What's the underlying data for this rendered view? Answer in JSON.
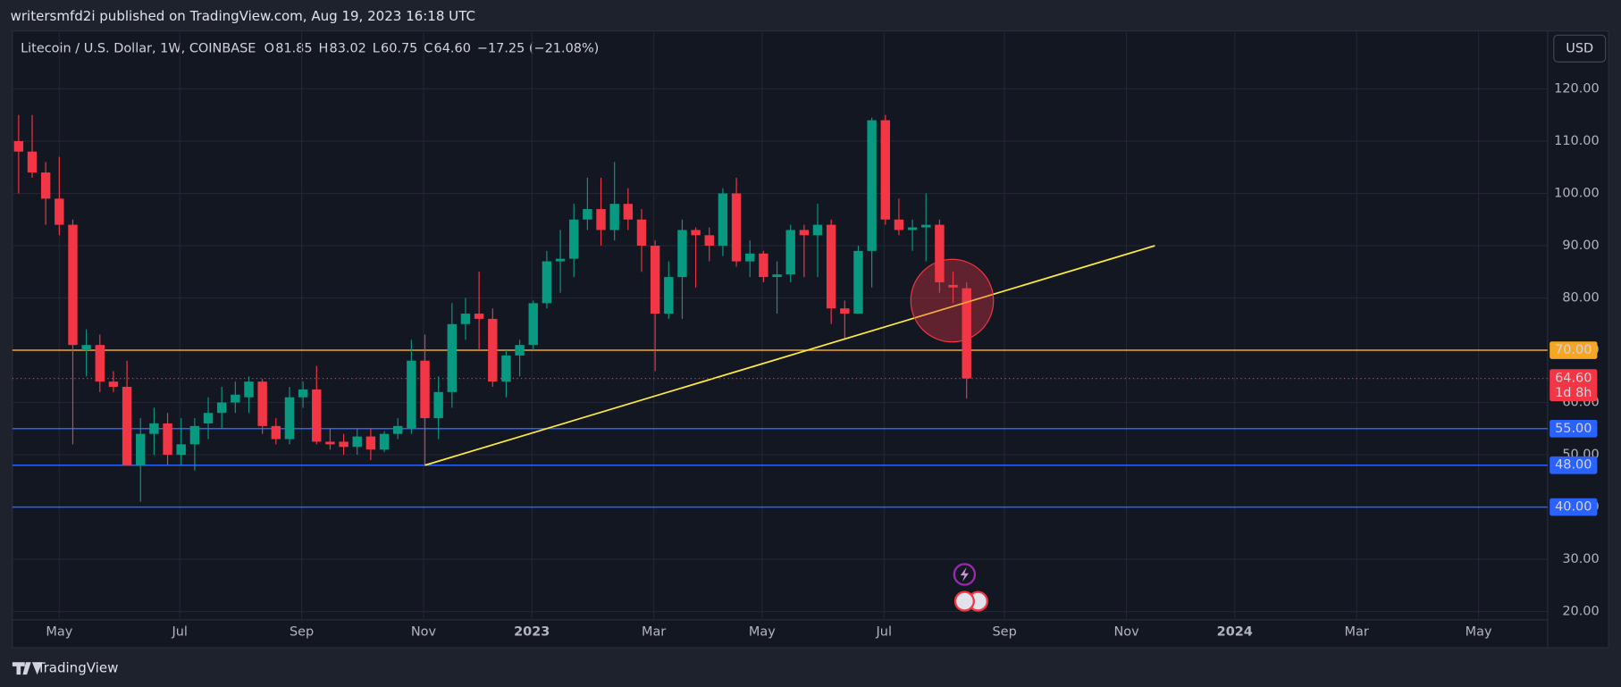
{
  "chart_data": {
    "type": "candlestick",
    "header": "writersmfd2i published on TradingView.com, Aug 19, 2023 16:18 UTC",
    "symbol": "Litecoin / U.S. Dollar, 1W, COINBASE",
    "ohlc_legend": [
      {
        "key": "O",
        "value": "81.85"
      },
      {
        "key": "H",
        "value": "83.02"
      },
      {
        "key": "L",
        "value": "60.75"
      },
      {
        "key": "C",
        "value": "64.60"
      }
    ],
    "change": "−17.25 (−21.08%)",
    "currency": "USD",
    "brand": "TradingView",
    "up_color": "#089981",
    "down_color": "#f23645",
    "open": [
      110,
      108,
      104,
      99,
      94,
      70,
      71,
      64,
      63,
      48,
      54,
      56,
      50,
      52,
      56,
      58,
      60,
      61,
      64,
      55.5,
      53,
      61,
      62.5,
      52.5,
      52.5,
      51.5,
      53.5,
      51,
      54,
      55,
      68,
      57,
      62,
      75,
      77,
      76,
      64,
      69,
      71,
      79,
      87,
      87.5,
      95,
      97,
      93,
      98,
      95,
      90,
      77,
      84,
      93,
      92,
      90,
      100,
      87,
      88.5,
      84,
      84.5,
      93,
      92,
      94,
      78,
      77,
      89,
      114,
      95,
      93,
      93.5,
      94,
      82.5,
      81.85
    ],
    "high": [
      115,
      115,
      106,
      107,
      95,
      74,
      73,
      66,
      68,
      57,
      59,
      58,
      57,
      57,
      61,
      63,
      64,
      65,
      64.5,
      57,
      63,
      64,
      67,
      55,
      54,
      55,
      55,
      54.5,
      57,
      72,
      73,
      65,
      79,
      80,
      85,
      78,
      70,
      72,
      79.5,
      89,
      93,
      98,
      103,
      103,
      106,
      101,
      97,
      91,
      87,
      95,
      93.5,
      93.5,
      101,
      103,
      91,
      89,
      87,
      94,
      94,
      98,
      95,
      79.5,
      90,
      114.5,
      115,
      99,
      95,
      100,
      95,
      85,
      83.02
    ],
    "low": [
      100,
      103,
      94,
      92,
      52,
      65,
      62,
      62,
      48,
      41,
      50,
      48,
      48,
      47,
      53,
      55,
      58,
      58,
      54,
      52,
      52,
      59,
      52,
      51,
      50,
      50,
      49,
      50.5,
      53,
      54,
      48,
      53,
      59,
      72,
      70,
      63,
      61,
      65,
      70,
      78,
      81,
      84,
      93,
      90,
      91,
      93,
      85,
      66,
      76,
      76,
      82,
      87,
      88,
      86,
      84,
      83,
      77,
      83,
      84,
      84,
      75,
      72,
      77,
      82,
      94,
      92,
      89,
      87,
      81,
      79,
      60.75
    ],
    "close": [
      108,
      104,
      99,
      94,
      71,
      71,
      64,
      63,
      48,
      54,
      56,
      50,
      52,
      55.5,
      58,
      60,
      61.5,
      64,
      55.5,
      53,
      61,
      62.5,
      52.5,
      52,
      51.5,
      53.5,
      51,
      54,
      55.5,
      68,
      57,
      62,
      75,
      77,
      76,
      64,
      69,
      71,
      79,
      87,
      87.5,
      95,
      97,
      93,
      98,
      95,
      90,
      77,
      84,
      93,
      92,
      90,
      100,
      87,
      88.5,
      84,
      84.5,
      93,
      92,
      94,
      78,
      77,
      89,
      114,
      95,
      93,
      93.5,
      94,
      83,
      82,
      64.6
    ],
    "xlim": [
      -0.46,
      112.9
    ],
    "xticks": [
      {
        "value": 3.0,
        "label": "May"
      },
      {
        "value": 11.9,
        "label": "Jul"
      },
      {
        "value": 20.9,
        "label": "Sep"
      },
      {
        "value": 29.9,
        "label": "Nov"
      },
      {
        "value": 37.9,
        "label": "2023"
      },
      {
        "value": 46.9,
        "label": "Mar"
      },
      {
        "value": 54.9,
        "label": "May"
      },
      {
        "value": 63.9,
        "label": "Jul"
      },
      {
        "value": 72.8,
        "label": "Sep"
      },
      {
        "value": 81.8,
        "label": "Nov"
      },
      {
        "value": 89.8,
        "label": "2024"
      },
      {
        "value": 98.8,
        "label": "Mar"
      },
      {
        "value": 107.8,
        "label": "May"
      }
    ],
    "ylim": [
      18.42,
      131.07
    ],
    "yticks": [
      {
        "value": 20,
        "label": "20.00"
      },
      {
        "value": 30,
        "label": "30.00"
      },
      {
        "value": 40,
        "label": "40.00"
      },
      {
        "value": 50,
        "label": "50.00"
      },
      {
        "value": 60,
        "label": "60.00"
      },
      {
        "value": 70,
        "label": "70.00"
      },
      {
        "value": 80,
        "label": "80.00"
      },
      {
        "value": 90,
        "label": "90.00"
      },
      {
        "value": 100,
        "label": "100.00"
      },
      {
        "value": 110,
        "label": "110.00"
      },
      {
        "value": 120,
        "label": "120.00"
      }
    ],
    "grid": true,
    "levels": [
      {
        "value": 70,
        "label": "70.00",
        "color": "#f5a623"
      },
      {
        "value": 55,
        "label": "55.00",
        "color": "#2962ff"
      },
      {
        "value": 48,
        "label": "48.00",
        "color": "#2962ff"
      },
      {
        "value": 40,
        "label": "40.00",
        "color": "#2962ff"
      }
    ],
    "trendline": {
      "x": [
        30,
        83.9
      ],
      "y": [
        48,
        90
      ],
      "color": "#ffeb3b"
    },
    "last_price": {
      "value": 64.6,
      "label": "64.60",
      "countdown": "1d 8h"
    }
  }
}
